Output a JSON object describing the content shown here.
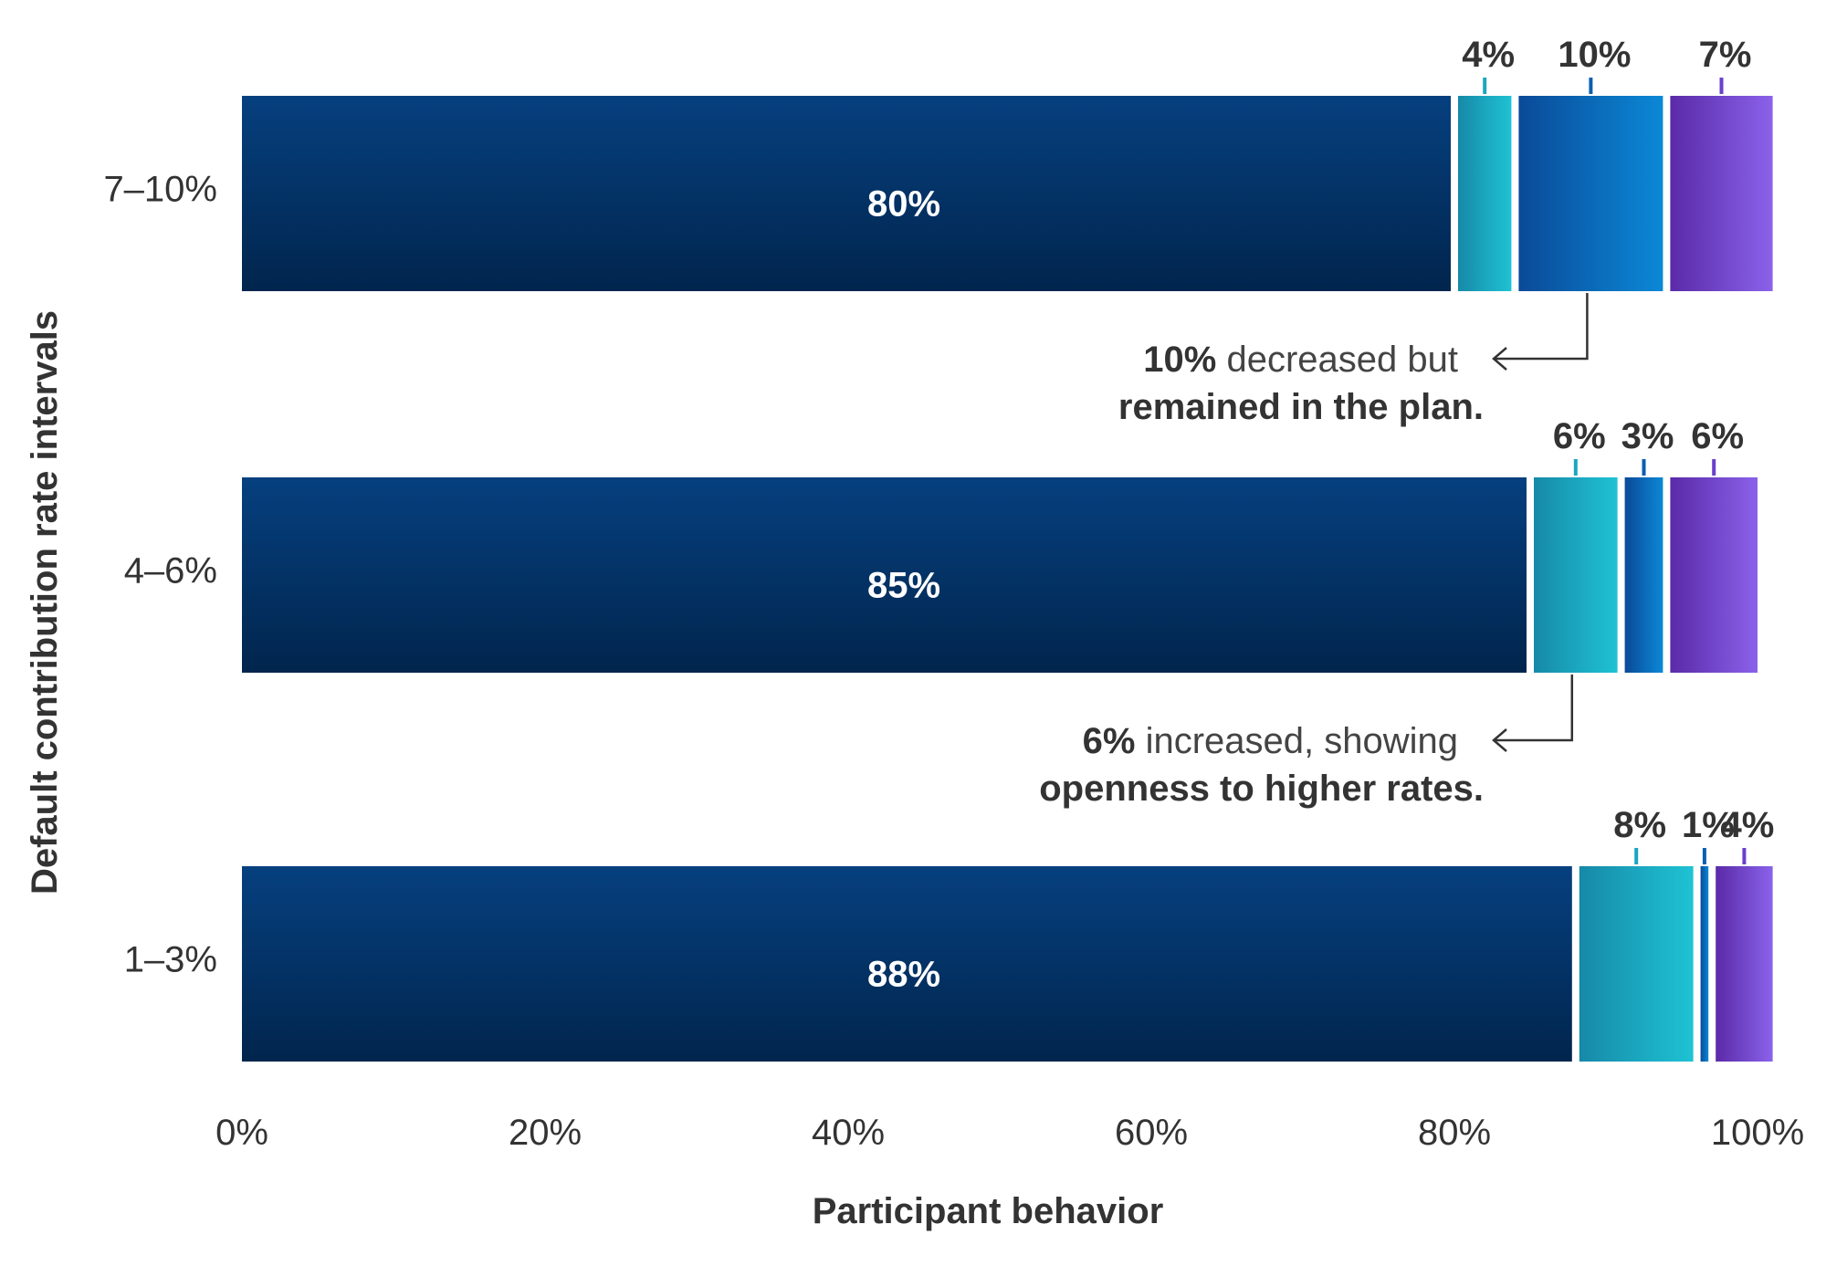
{
  "chart_data": {
    "type": "bar",
    "orientation": "horizontal",
    "stacked": true,
    "categories": [
      "7–10%",
      "4–6%",
      "1–3%"
    ],
    "series": [
      {
        "values": [
          80,
          85,
          88
        ],
        "color": "#063268"
      },
      {
        "values": [
          4,
          6,
          8
        ],
        "color": "#1aa6c0"
      },
      {
        "values": [
          10,
          3,
          1
        ],
        "color": "#0a5fb0"
      },
      {
        "values": [
          7,
          6,
          4
        ],
        "color": "#6a40cc"
      }
    ],
    "data_labels": [
      [
        "80%",
        "4%",
        "10%",
        "7%"
      ],
      [
        "85%",
        "6%",
        "3%",
        "6%"
      ],
      [
        "88%",
        "8%",
        "1%",
        "4%"
      ]
    ],
    "tick_labels": [
      "0%",
      "20%",
      "40%",
      "60%",
      "80%",
      "100%"
    ],
    "xlabel": "Participant behavior",
    "ylabel": "Default contribution rate intervals",
    "xlim": [
      0,
      100
    ],
    "grid": false,
    "legend": false,
    "annotations": [
      {
        "category": "7–10%",
        "series_index": 2,
        "line1_bold": "10%",
        "line1_rest": " decreased but",
        "line2_bold": "remained in the plan."
      },
      {
        "category": "4–6%",
        "series_index": 1,
        "line1_bold": "6%",
        "line1_rest": " increased, showing",
        "line2_bold": "openness to higher rates."
      }
    ]
  }
}
